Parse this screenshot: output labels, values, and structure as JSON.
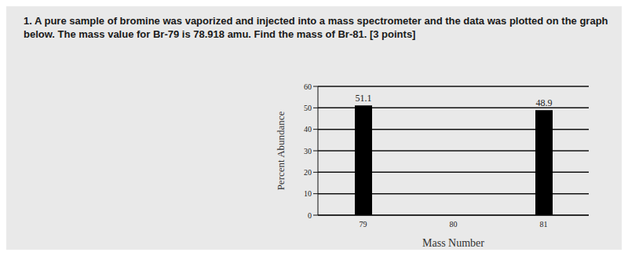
{
  "chart_data": {
    "type": "bar",
    "title": "1. A pure sample of bromine was vaporized and injected into a mass spectrometer and the data was plotted on the graph below. The mass value for Br-79 is 78.918 amu. Find the mass of Br-81. [3 points]",
    "x_label": "Mass Number",
    "y_label": "Percent Abundance",
    "categories": [
      "79",
      "80",
      "81"
    ],
    "values": [
      51.1,
      null,
      48.9
    ],
    "color": "#000000",
    "ylim": [
      0,
      60
    ],
    "yticks": [
      0,
      10,
      20,
      30,
      40,
      50,
      60
    ],
    "grid": true,
    "data_labels": true
  }
}
